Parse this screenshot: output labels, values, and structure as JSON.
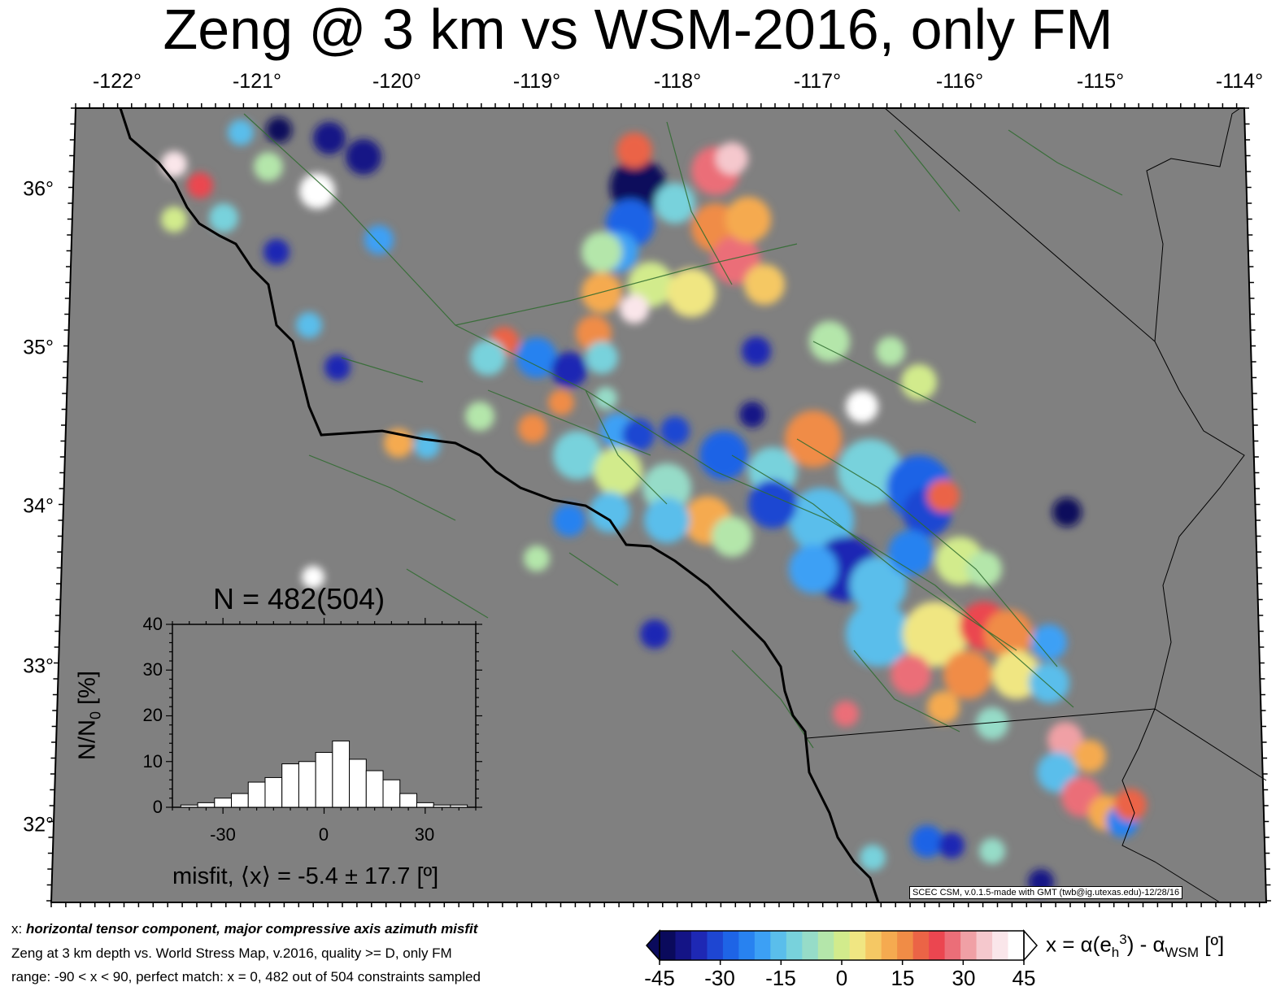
{
  "title": "Zeng @ 3 km vs WSM-2016, only FM",
  "lon_ticks": [
    "-122°",
    "-121°",
    "-120°",
    "-119°",
    "-118°",
    "-117°",
    "-116°",
    "-115°",
    "-114°"
  ],
  "lat_ticks": [
    "36°",
    "35°",
    "34°",
    "33°",
    "32°"
  ],
  "colors": {
    "ocean_land": "#808080",
    "coastline": "#000000",
    "faults": "#2e6b2e"
  },
  "credit": "SCEC CSM, v.0.1.5-made with GMT (twb@ig.utexas.edu)-12/28/16",
  "histogram": {
    "n_label": "N = 482(504)",
    "y_label": "N/N0 [%]",
    "y_ticks": [
      "40",
      "30",
      "20",
      "10",
      "0"
    ],
    "x_ticks": [
      "-30",
      "0",
      "30"
    ],
    "x_label": "misfit, ⟨x⟩ = -5.4 ± 17.7 [º]",
    "bin_percent": [
      0.5,
      1,
      2,
      3,
      5.5,
      6.5,
      9.5,
      10,
      12,
      14.5,
      10.5,
      8,
      6,
      3,
      1,
      0.5,
      0.5
    ],
    "xlim": [
      -45,
      45
    ],
    "ylim": [
      0,
      40
    ]
  },
  "caption": {
    "line1_prefix": "x: ",
    "line1_bold": "horizontal tensor component, major compressive axis azimuth misfit",
    "line2": "Zeng at 3 km depth vs.  World Stress Map, v.2016, quality >= D, only FM",
    "line3": "range: -90 < x < 90, perfect match: x = 0, 482 out of 504 constraints sampled"
  },
  "colorbar": {
    "ticks": [
      "-45",
      "-30",
      "-15",
      "0",
      "15",
      "30",
      "45"
    ],
    "label": "x = α(eh3) - αWSM [º]",
    "label_parts": {
      "a": "x = α(e",
      "sub1": "h",
      "sup": "3",
      "b": ") - α",
      "sub2": "WSM",
      "c": " [º]"
    },
    "colors": [
      "#0a0a5c",
      "#141486",
      "#1e28b4",
      "#1e46d2",
      "#1e64e6",
      "#2882f0",
      "#3ca0f5",
      "#5abeeb",
      "#78d2dc",
      "#96dcc8",
      "#b4e6aa",
      "#d2eb8c",
      "#f0e682",
      "#f5c864",
      "#f5aa50",
      "#f08c46",
      "#eb6446",
      "#eb4650",
      "#eb6e78",
      "#f0a0a5",
      "#f5c8cd",
      "#fae6ea",
      "#ffffff"
    ]
  }
}
